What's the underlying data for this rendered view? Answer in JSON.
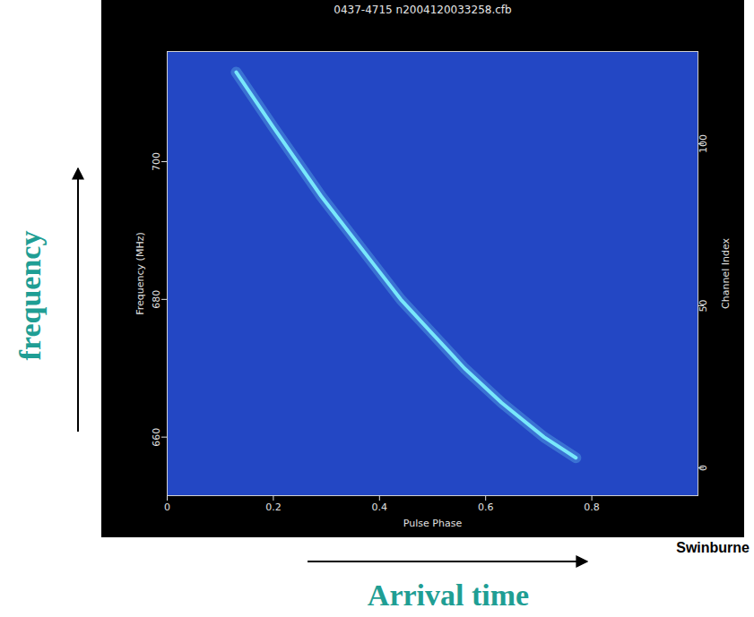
{
  "chart_data": {
    "type": "line",
    "title": "0437-4715 n2004120033258.cfb",
    "x_label": "Pulse Phase",
    "y_label": "Frequency (MHz)",
    "y2_label": "Channel Index",
    "x": [
      0.13,
      0.2,
      0.245,
      0.29,
      0.34,
      0.39,
      0.44,
      0.5,
      0.56,
      0.63,
      0.71,
      0.77
    ],
    "values": [
      713,
      705,
      700,
      695,
      690,
      685,
      680,
      675,
      670,
      665,
      660,
      657
    ],
    "color": "#7ff4ff",
    "xlim": [
      0,
      1
    ],
    "xticks": [
      0,
      0.2,
      0.4,
      0.6,
      0.8
    ],
    "ylim": [
      651.5,
      716
    ],
    "yticks": [
      660,
      680,
      700
    ],
    "y2lim": [
      -8.6,
      128.5
    ],
    "y2ticks": [
      0,
      50,
      100
    ],
    "annotations": {
      "frequency": "frequency",
      "arrival_time": "Arrival time",
      "credit": "Swinburne"
    }
  }
}
